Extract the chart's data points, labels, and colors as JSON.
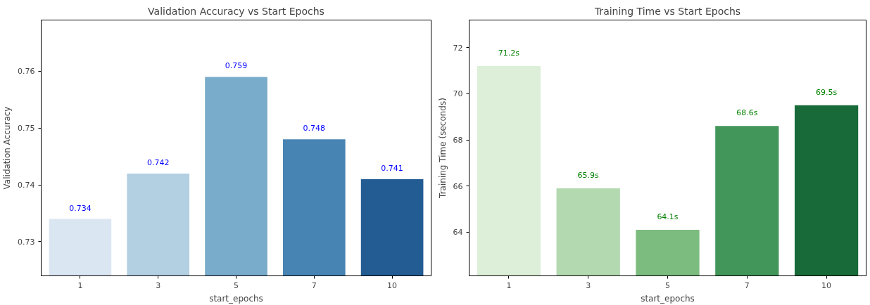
{
  "chart_data": [
    {
      "type": "bar",
      "title": "Validation Accuracy vs Start Epochs",
      "xlabel": "start_epochs",
      "ylabel": "Validation Accuracy",
      "categories": [
        "1",
        "3",
        "5",
        "7",
        "10"
      ],
      "values": [
        0.734,
        0.742,
        0.759,
        0.748,
        0.741
      ],
      "colors": [
        "#dbe6f3",
        "#b3cfe2",
        "#79abca",
        "#4884b3",
        "#225c93"
      ],
      "ylim": [
        0.724,
        0.769
      ],
      "yticks": [
        0.73,
        0.74,
        0.75,
        0.76
      ],
      "data_labels": true,
      "grid": false
    },
    {
      "type": "bar",
      "title": "Training Time vs Start Epochs",
      "xlabel": "start_epochs",
      "ylabel": "Training Time (seconds)",
      "categories": [
        "1",
        "3",
        "5",
        "7",
        "10"
      ],
      "values": [
        71.2,
        65.9,
        64.1,
        68.6,
        69.5
      ],
      "value_labels": [
        "71.2s",
        "65.9s",
        "64.1s",
        "68.6s",
        "69.5s"
      ],
      "colors": [
        "#ddefd9",
        "#b2d9af",
        "#7dbc7f",
        "#43965a",
        "#186a38"
      ],
      "ylim": [
        62.1,
        73.2
      ],
      "yticks": [
        64,
        66,
        68,
        70,
        72
      ],
      "grid": false
    }
  ]
}
